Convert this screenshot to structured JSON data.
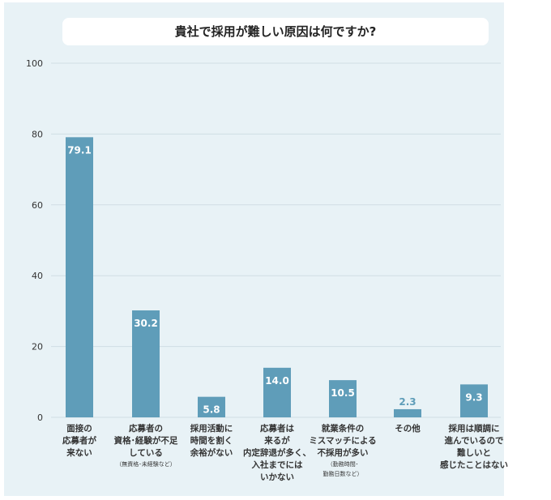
{
  "chart_data": {
    "type": "bar",
    "title": "貴社で採用が難しい原因は何ですか?",
    "categories": [
      "面接の\n応募者が\n来ない",
      "応募者の\n資格･経験が不足\nしている",
      "採用活動に\n時間を割く\n余裕がない",
      "応募者は\n来るが\n内定辞退が多く、\n入社までには\nいかない",
      "就業条件の\nミスマッチによる\n不採用が多い",
      "その他",
      "採用は順調に\n進んでいるので\n難しいと\n感じたことはない"
    ],
    "notes": [
      "",
      "（無資格･未経験など）",
      "",
      "",
      "（勤務時間･\n勤務日数など）",
      "",
      ""
    ],
    "values": [
      79.1,
      30.2,
      5.8,
      14.0,
      10.5,
      2.3,
      9.3
    ],
    "value_labels": [
      "79.1",
      "30.2",
      "5.8",
      "14.0",
      "10.5",
      "2.3",
      "9.3"
    ],
    "ylim": [
      0,
      100
    ],
    "yticks": [
      "0",
      "20",
      "40",
      "60",
      "80",
      "100"
    ],
    "grid": true,
    "colors": {
      "bar": "#5f9db9",
      "panel": "#e8f2f6",
      "grid": "#cfdde4"
    }
  }
}
